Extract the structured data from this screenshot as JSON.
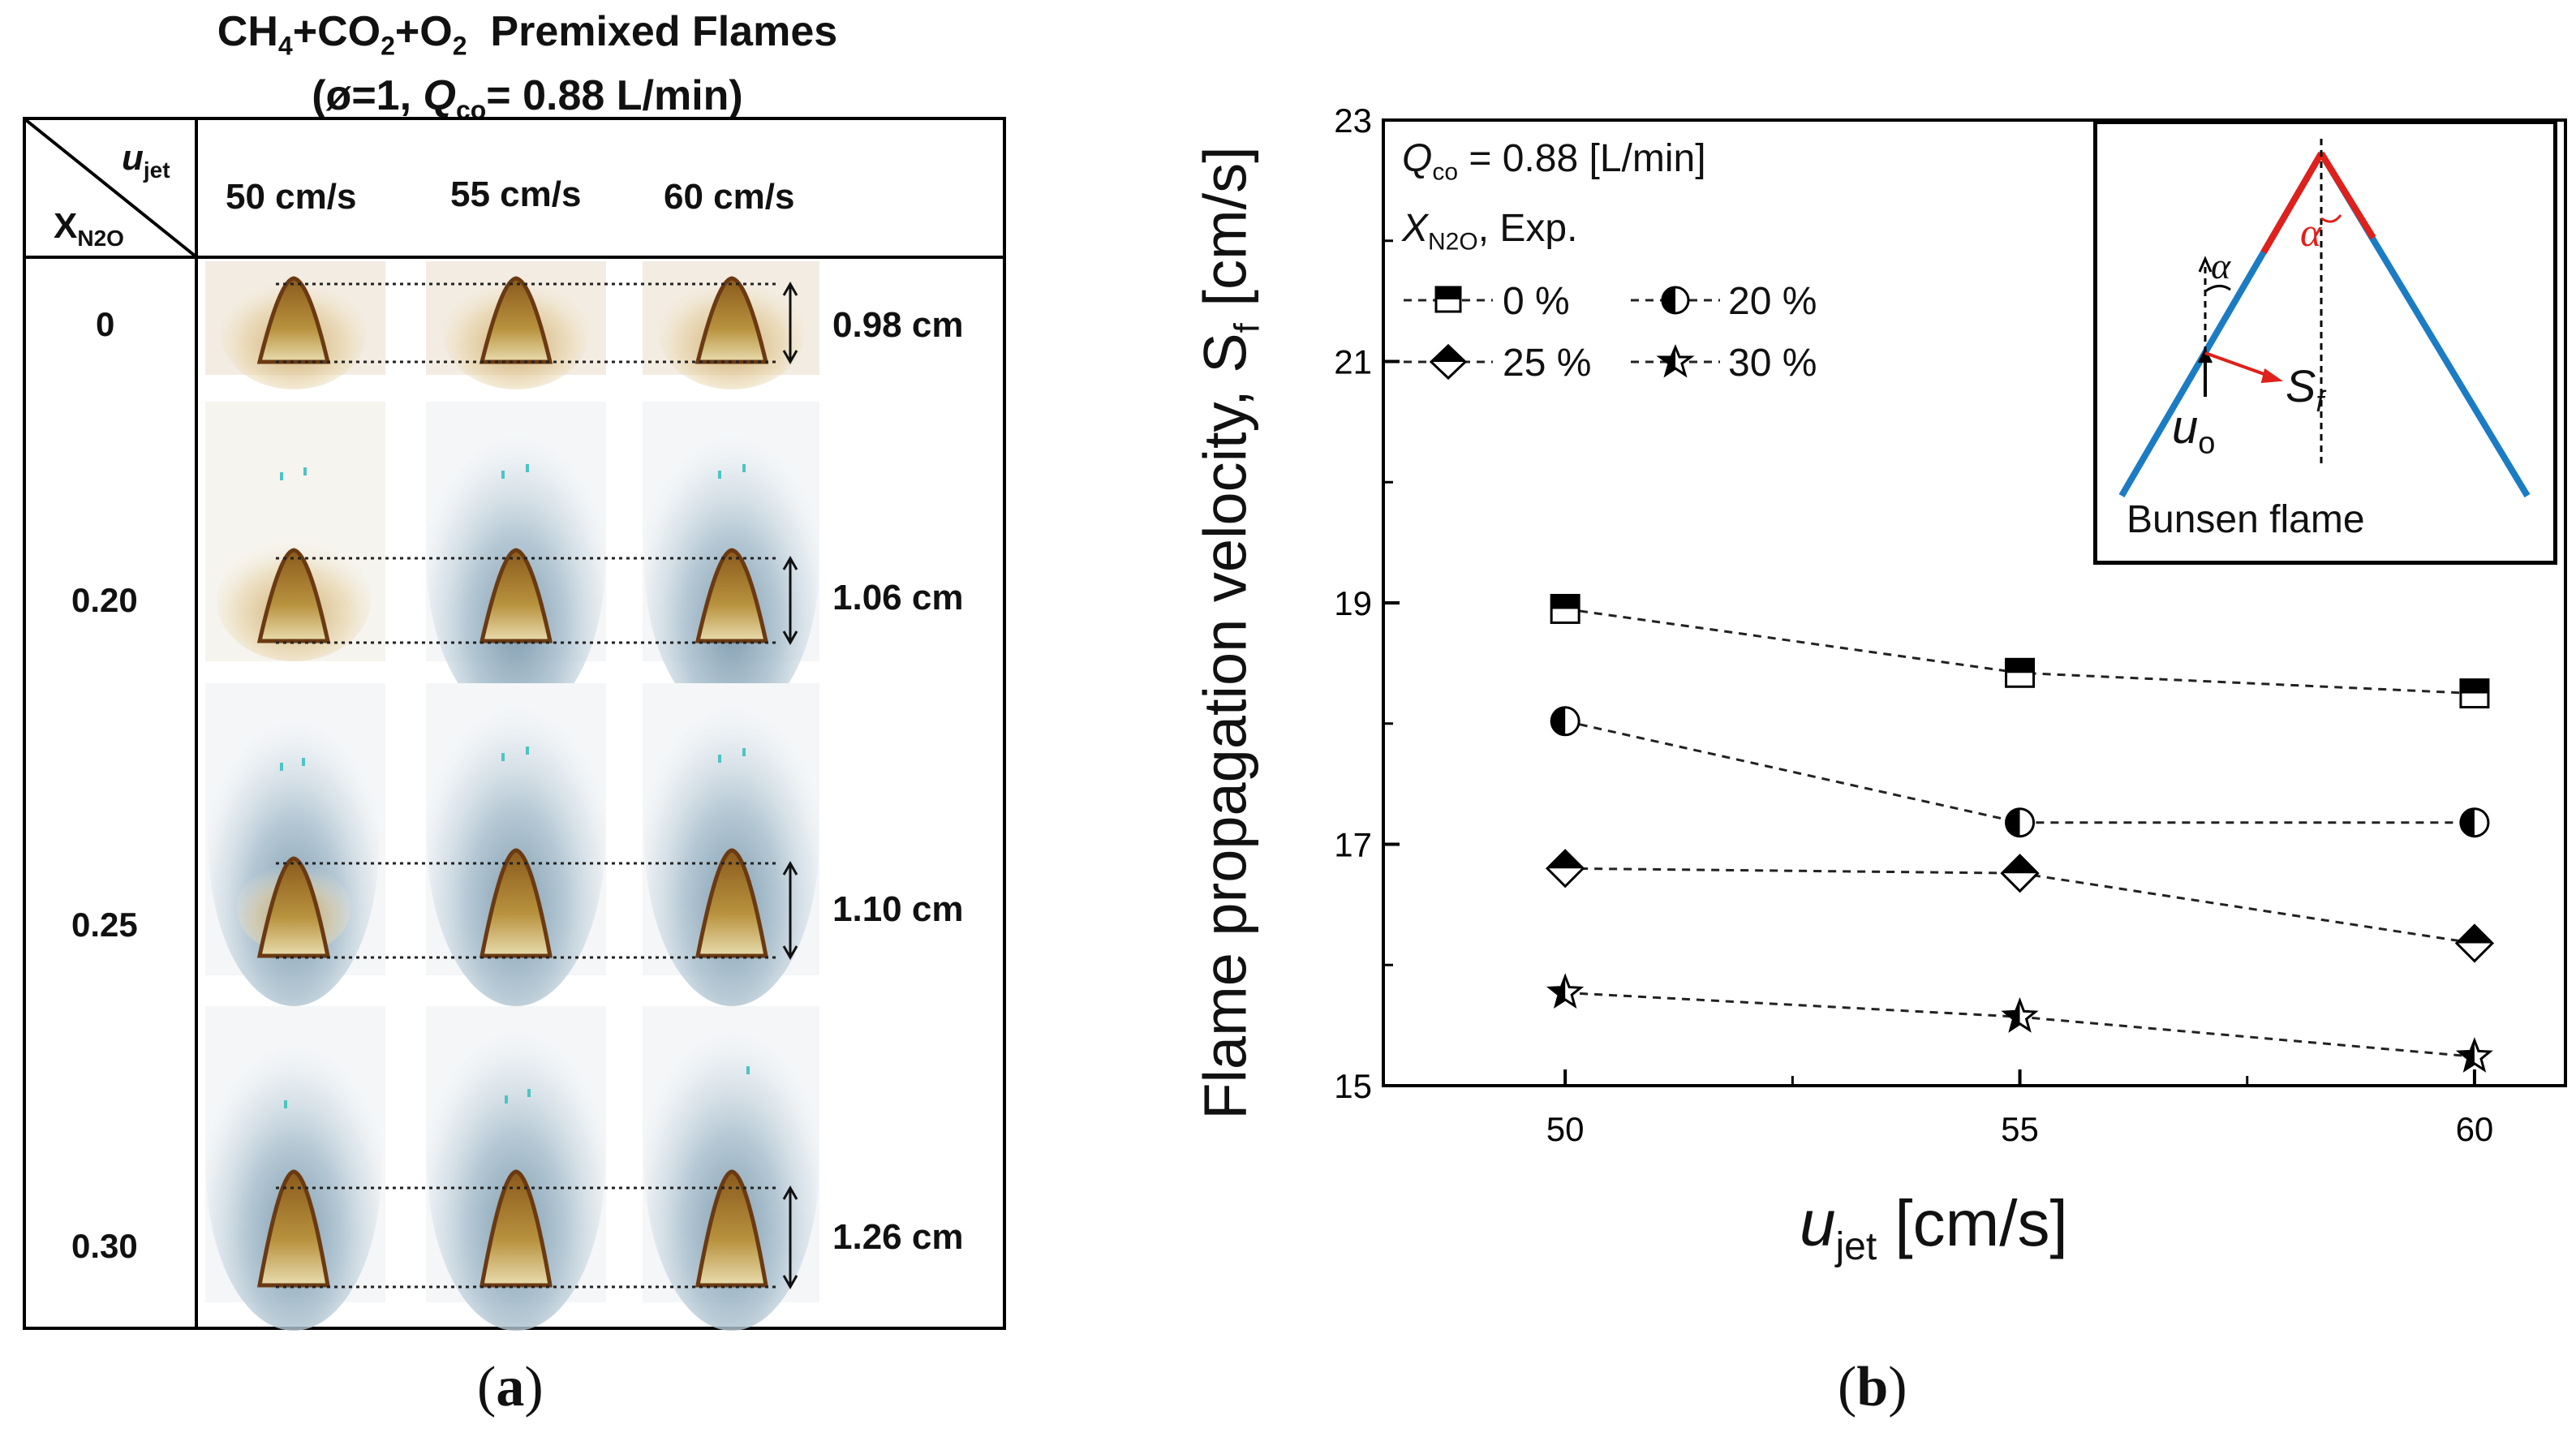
{
  "panel_a": {
    "title_line1_prefix": "CH",
    "title_line1_sub1": "4",
    "title_line1_mid1": "+CO",
    "title_line1_sub2": "2",
    "title_line1_mid2": "+O",
    "title_line1_sub3": "2",
    "title_line1_suffix": "  Premixed Flames",
    "title_line2_prefix": "(ø=1, ",
    "title_line2_q": "Q",
    "title_line2_qsub": "co",
    "title_line2_suffix": "= 0.88 L/min)",
    "corner_top": "u",
    "corner_top_sub": "jet",
    "corner_bottom": "X",
    "corner_bottom_sub": "N2O",
    "columns": [
      "50 cm/s",
      "55 cm/s",
      "60 cm/s"
    ],
    "rows": [
      {
        "x": "0",
        "height": "0.98 cm"
      },
      {
        "x": "0.20",
        "height": "1.06 cm"
      },
      {
        "x": "0.25",
        "height": "1.10 cm"
      },
      {
        "x": "0.30",
        "height": "1.26 cm"
      }
    ],
    "caption": "(a)"
  },
  "panel_b": {
    "caption": "(b)",
    "inset_label": "Bunsen flame",
    "inset_alpha": "α",
    "inset_sf": "S",
    "inset_sf_sub": "f",
    "inset_u": "u",
    "inset_u_sub": "o",
    "annot_q": "Q",
    "annot_q_sub": "co",
    "annot_q_value": " = 0.88 [L/min]",
    "annot_x": "X",
    "annot_x_sub": "N2O",
    "annot_x_suffix": ", Exp."
  },
  "chart_data": {
    "type": "line",
    "title": "",
    "xlabel": "u",
    "xlabel_sub": "jet",
    "xlabel_unit": " [cm/s]",
    "ylabel": "Flame propagation velocity,  S",
    "ylabel_sub": "f",
    "ylabel_unit": " [cm/s]",
    "xlim": [
      48,
      61
    ],
    "ylim": [
      15,
      23
    ],
    "xticks": [
      50,
      55,
      60
    ],
    "yticks": [
      15,
      17,
      19,
      21,
      23
    ],
    "x": [
      50,
      55,
      60
    ],
    "series": [
      {
        "name": "0 %",
        "marker": "square-half-top",
        "values": [
          18.95,
          18.42,
          18.25
        ]
      },
      {
        "name": "20 %",
        "marker": "circle-half-left",
        "values": [
          18.02,
          17.18,
          17.18
        ]
      },
      {
        "name": "25 %",
        "marker": "diamond-half-top",
        "values": [
          16.8,
          16.76,
          16.18
        ]
      },
      {
        "name": "30 %",
        "marker": "star-half-left",
        "values": [
          15.77,
          15.57,
          15.24
        ]
      }
    ],
    "legend_position": "top-left",
    "grid": false
  }
}
